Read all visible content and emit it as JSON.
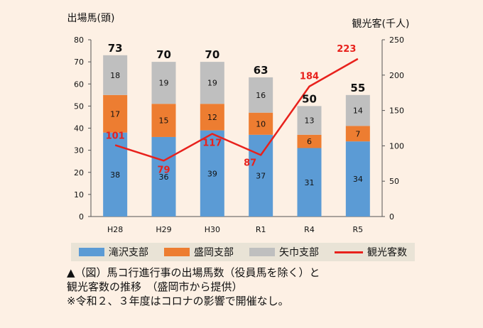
{
  "chart_data": {
    "type": "bar",
    "stacked": true,
    "categories": [
      "H28",
      "H29",
      "H30",
      "R1",
      "R4",
      "R5"
    ],
    "series": [
      {
        "name": "滝沢支部",
        "color": "#5b9bd5",
        "values": [
          38,
          36,
          39,
          37,
          31,
          34
        ]
      },
      {
        "name": "盛岡支部",
        "color": "#ed7d31",
        "values": [
          17,
          15,
          12,
          10,
          6,
          7
        ]
      },
      {
        "name": "矢巾支部",
        "color": "#bfbfbf",
        "values": [
          18,
          19,
          19,
          16,
          13,
          14
        ]
      }
    ],
    "totals": [
      73,
      70,
      70,
      63,
      50,
      55
    ],
    "line_series": {
      "name": "観光客数",
      "color": "#e8211c",
      "axis": "right",
      "values": [
        101,
        79,
        117,
        87,
        184,
        223
      ]
    },
    "ylabel_left": "出場馬(頭)",
    "ylabel_right": "観光客(千人)",
    "ylim_left": [
      0,
      80
    ],
    "ylim_right": [
      0,
      250
    ],
    "yticks_left": [
      0,
      10,
      20,
      30,
      40,
      50,
      60,
      70,
      80
    ],
    "yticks_right": [
      0,
      50,
      100,
      150,
      200,
      250
    ],
    "legend_position": "bottom"
  },
  "caption": {
    "line1": "▲（図）馬コ行進行事の出場馬数（役員馬を除く）と",
    "line2": "観光客数の推移　（盛岡市から提供）",
    "line3": "※令和２、３年度はコロナの影響で開催なし。"
  }
}
